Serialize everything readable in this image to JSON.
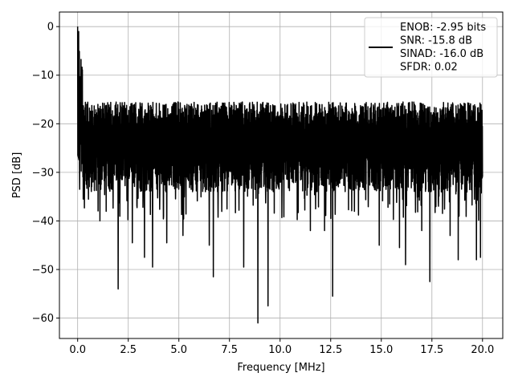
{
  "chart_data": {
    "type": "line",
    "title": "",
    "xlabel": "Frequency [MHz]",
    "ylabel": "PSD [dB]",
    "xlim": [
      -0.9,
      21.0
    ],
    "ylim": [
      -64.2,
      3.0
    ],
    "xticks": [
      0.0,
      2.5,
      5.0,
      7.5,
      10.0,
      12.5,
      15.0,
      17.5,
      20.0
    ],
    "xtick_labels": [
      "0.0",
      "2.5",
      "5.0",
      "7.5",
      "10.0",
      "12.5",
      "15.0",
      "17.5",
      "20.0"
    ],
    "yticks": [
      0,
      -10,
      -20,
      -30,
      -40,
      -50,
      -60
    ],
    "ytick_labels": [
      "0",
      "−10",
      "−20",
      "−30",
      "−40",
      "−50",
      "−60"
    ],
    "grid": true,
    "legend_position": "top-right",
    "legend_lines": [
      "ENOB: -2.95 bits",
      "SNR: -15.8 dB",
      "SINAD: -16.0 dB",
      "SFDR: 0.02"
    ],
    "series": [
      {
        "color": "#000000",
        "style": "noise-band",
        "x_start": 0.0,
        "x_end": 20.0,
        "envelope_upper": -15.5,
        "envelope_lower": -34.0,
        "peaks": [
          {
            "x": 0.0,
            "y": 0.0
          },
          {
            "x": 0.05,
            "y": -1.0
          },
          {
            "x": 0.1,
            "y": -5.0
          },
          {
            "x": 0.2,
            "y": -9.0
          }
        ],
        "dips": [
          {
            "x": 0.1,
            "y": -33.5
          },
          {
            "x": 1.1,
            "y": -40.0
          },
          {
            "x": 2.0,
            "y": -54.0
          },
          {
            "x": 2.7,
            "y": -44.5
          },
          {
            "x": 3.3,
            "y": -47.5
          },
          {
            "x": 3.7,
            "y": -49.5
          },
          {
            "x": 4.4,
            "y": -44.5
          },
          {
            "x": 5.2,
            "y": -43.0
          },
          {
            "x": 6.5,
            "y": -45.0
          },
          {
            "x": 6.7,
            "y": -51.5
          },
          {
            "x": 8.2,
            "y": -49.5
          },
          {
            "x": 8.9,
            "y": -61.0
          },
          {
            "x": 9.4,
            "y": -57.5
          },
          {
            "x": 11.5,
            "y": -42.0
          },
          {
            "x": 12.2,
            "y": -42.0
          },
          {
            "x": 12.6,
            "y": -55.5
          },
          {
            "x": 14.9,
            "y": -45.0
          },
          {
            "x": 15.9,
            "y": -45.5
          },
          {
            "x": 16.2,
            "y": -49.0
          },
          {
            "x": 17.0,
            "y": -42.0
          },
          {
            "x": 17.4,
            "y": -52.5
          },
          {
            "x": 18.4,
            "y": -43.0
          },
          {
            "x": 18.8,
            "y": -48.0
          },
          {
            "x": 19.7,
            "y": -48.0
          },
          {
            "x": 19.9,
            "y": -47.5
          }
        ]
      }
    ]
  }
}
